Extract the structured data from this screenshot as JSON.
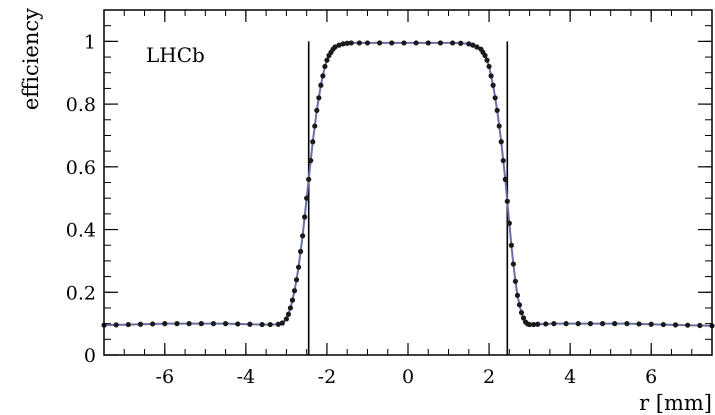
{
  "chart_data": {
    "type": "scatter",
    "xlabel": "r [mm]",
    "ylabel": "efficiency",
    "annotation": "LHCb",
    "xlim": [
      -7.5,
      7.5
    ],
    "ylim": [
      0,
      1.1
    ],
    "x_ticks": [
      -6,
      -4,
      -2,
      0,
      2,
      4,
      6
    ],
    "x_tick_labels": [
      "-6",
      "-4",
      "-2",
      "0",
      "2",
      "4",
      "6"
    ],
    "y_ticks": [
      0,
      0.2,
      0.4,
      0.6,
      0.8,
      1
    ],
    "y_tick_labels": [
      "0",
      "0.2",
      "0.4",
      "0.6",
      "0.8",
      "1"
    ],
    "grid": false,
    "vertical_lines": [
      -2.45,
      2.45
    ],
    "series": [
      {
        "x": [
          -7.5,
          -7.2,
          -6.9,
          -6.6,
          -6.3,
          -6.0,
          -5.7,
          -5.4,
          -5.1,
          -4.8,
          -4.5,
          -4.2,
          -3.9,
          -3.6,
          -3.4,
          -3.2,
          -3.1,
          -3.0,
          -2.95,
          -2.9,
          -2.85,
          -2.8,
          -2.75,
          -2.7,
          -2.65,
          -2.6,
          -2.55,
          -2.5,
          -2.45,
          -2.4,
          -2.35,
          -2.3,
          -2.25,
          -2.2,
          -2.15,
          -2.1,
          -2.05,
          -2.0,
          -1.95,
          -1.9,
          -1.85,
          -1.8,
          -1.7,
          -1.6,
          -1.5,
          -1.4,
          -1.2,
          -1.0,
          -0.7,
          -0.4,
          -0.1,
          0.2,
          0.5,
          0.8,
          1.1,
          1.3,
          1.5,
          1.6,
          1.7,
          1.8,
          1.85,
          1.9,
          1.95,
          2.0,
          2.05,
          2.1,
          2.15,
          2.2,
          2.25,
          2.3,
          2.35,
          2.4,
          2.45,
          2.5,
          2.55,
          2.6,
          2.65,
          2.7,
          2.75,
          2.8,
          2.85,
          2.9,
          2.95,
          3.0,
          3.1,
          3.2,
          3.4,
          3.6,
          3.9,
          4.2,
          4.5,
          4.8,
          5.1,
          5.4,
          5.7,
          6.0,
          6.3,
          6.6,
          6.9,
          7.2,
          7.5
        ],
        "y": [
          0.095,
          0.096,
          0.097,
          0.098,
          0.099,
          0.1,
          0.1,
          0.1,
          0.1,
          0.1,
          0.1,
          0.099,
          0.098,
          0.097,
          0.097,
          0.098,
          0.102,
          0.115,
          0.13,
          0.15,
          0.175,
          0.205,
          0.24,
          0.28,
          0.33,
          0.38,
          0.44,
          0.5,
          0.56,
          0.62,
          0.68,
          0.73,
          0.78,
          0.82,
          0.86,
          0.89,
          0.92,
          0.94,
          0.955,
          0.965,
          0.975,
          0.982,
          0.988,
          0.992,
          0.994,
          0.995,
          0.995,
          0.995,
          0.995,
          0.995,
          0.995,
          0.995,
          0.995,
          0.995,
          0.995,
          0.994,
          0.992,
          0.988,
          0.982,
          0.975,
          0.965,
          0.955,
          0.94,
          0.92,
          0.89,
          0.86,
          0.82,
          0.78,
          0.73,
          0.68,
          0.62,
          0.56,
          0.49,
          0.42,
          0.35,
          0.29,
          0.235,
          0.19,
          0.16,
          0.135,
          0.118,
          0.105,
          0.099,
          0.097,
          0.097,
          0.098,
          0.099,
          0.1,
          0.1,
          0.1,
          0.1,
          0.1,
          0.1,
          0.1,
          0.099,
          0.098,
          0.097,
          0.096,
          0.095,
          0.094,
          0.093
        ]
      }
    ],
    "colors": {
      "curve": "#6a6fa8",
      "points": "#1a1a1a",
      "axes": "#000000"
    }
  }
}
